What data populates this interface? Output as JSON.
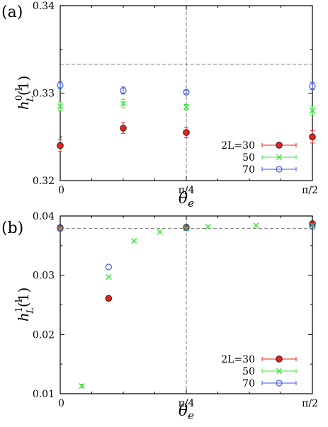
{
  "chart_data": [
    {
      "type": "scatter",
      "panel_label": "(a)",
      "xlabel": "θ",
      "xlabel_sub": "e",
      "ylabel_main": "h",
      "ylabel_sup": "0,1",
      "ylabel_sub": "L",
      "ylabel_tail": "(1)",
      "xlim": [
        0,
        1.5708
      ],
      "ylim": [
        0.32,
        0.34
      ],
      "xticks": [
        {
          "value": 0,
          "label": "0"
        },
        {
          "value": 0.7854,
          "label": "π/4"
        },
        {
          "value": 1.5708,
          "label": "π/2"
        }
      ],
      "yticks": [
        {
          "value": 0.32,
          "label": "0.32"
        },
        {
          "value": 0.33,
          "label": "0.33"
        },
        {
          "value": 0.34,
          "label": "0.34"
        }
      ],
      "reference_lines": {
        "horizontal": 0.3333,
        "vertical": 0.7854
      },
      "legend_position": "bottom-right",
      "series": [
        {
          "name": "2L=30",
          "marker": "filled-circle",
          "color": "#e8231c",
          "points": [
            [
              0,
              0.324,
              0.0007
            ],
            [
              0.3927,
              0.326,
              0.0006
            ],
            [
              0.7854,
              0.3255,
              0.0006
            ],
            [
              1.5708,
              0.325,
              0.0007
            ]
          ]
        },
        {
          "name": "50",
          "marker": "cross",
          "color": "#33e833",
          "points": [
            [
              0,
              0.3285,
              0.0005
            ],
            [
              0.3927,
              0.3288,
              0.0005
            ],
            [
              0.7854,
              0.3284,
              0.0003
            ],
            [
              1.5708,
              0.328,
              0.0005
            ]
          ]
        },
        {
          "name": "70",
          "marker": "open-circle",
          "color": "#3a5ae8",
          "points": [
            [
              0,
              0.3309,
              0.0004
            ],
            [
              0.3927,
              0.3303,
              0.0004
            ],
            [
              0.7854,
              0.3301,
              0.0002
            ],
            [
              1.5708,
              0.3308,
              0.0004
            ]
          ]
        }
      ]
    },
    {
      "type": "scatter",
      "panel_label": "(b)",
      "xlabel": "θ",
      "xlabel_sub": "e",
      "ylabel_main": "h",
      "ylabel_sup": "1,1",
      "ylabel_sub": "L",
      "ylabel_tail": "(1)",
      "xlim": [
        0,
        1.5708
      ],
      "ylim": [
        0.01,
        0.04
      ],
      "xticks": [
        {
          "value": 0,
          "label": "0"
        },
        {
          "value": 0.7854,
          "label": "π/4"
        },
        {
          "value": 1.5708,
          "label": "π/2"
        }
      ],
      "yticks": [
        {
          "value": 0.01,
          "label": "0.01"
        },
        {
          "value": 0.02,
          "label": "0.02"
        },
        {
          "value": 0.03,
          "label": "0.03"
        },
        {
          "value": 0.04,
          "label": "0.04"
        }
      ],
      "reference_lines": {
        "horizontal": 0.0379,
        "vertical": 0.7854
      },
      "legend_position": "bottom-right",
      "series": [
        {
          "name": "2L=30",
          "marker": "filled-circle",
          "color": "#e8231c",
          "points": [
            [
              0,
              0.038,
              0
            ],
            [
              0.3016,
              0.0261,
              0
            ],
            [
              0.7854,
              0.0381,
              0
            ],
            [
              1.5708,
              0.0387,
              0
            ]
          ]
        },
        {
          "name": "50",
          "marker": "cross",
          "color": "#33e833",
          "points": [
            [
              0,
              0.0378,
              0
            ],
            [
              0.134,
              0.0113,
              0.0003
            ],
            [
              0.3016,
              0.0297,
              0
            ],
            [
              0.46,
              0.0358,
              0
            ],
            [
              0.62,
              0.0373,
              0
            ],
            [
              0.7854,
              0.0379,
              0
            ],
            [
              0.92,
              0.0382,
              0
            ],
            [
              1.22,
              0.0384,
              0
            ],
            [
              1.5708,
              0.0384,
              0
            ]
          ]
        },
        {
          "name": "70",
          "marker": "open-circle",
          "color": "#3a5ae8",
          "points": [
            [
              0,
              0.0379,
              0
            ],
            [
              0.3016,
              0.0314,
              0
            ],
            [
              0.7854,
              0.038,
              0
            ],
            [
              1.5708,
              0.0382,
              0
            ]
          ]
        }
      ]
    }
  ]
}
